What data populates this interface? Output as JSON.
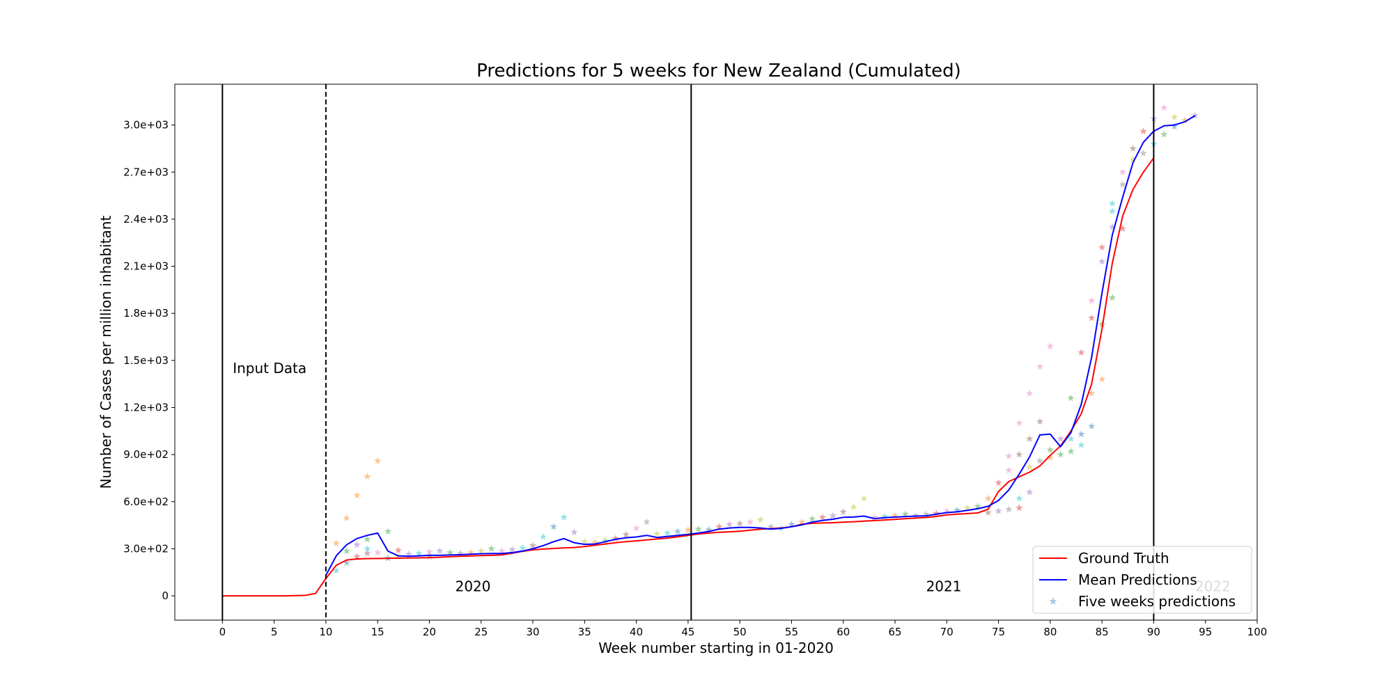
{
  "chart_data": {
    "type": "line",
    "title": "Predictions for 5 weeks for New Zealand (Cumulated)",
    "xlabel": "Week number starting in 01-2020",
    "ylabel": "Number of Cases per million inhabitant",
    "xlim": [
      -4.6,
      100
    ],
    "ylim": [
      -155,
      3260
    ],
    "xticks": [
      0,
      5,
      10,
      15,
      20,
      25,
      30,
      35,
      40,
      45,
      50,
      55,
      60,
      65,
      70,
      75,
      80,
      85,
      90,
      95,
      100
    ],
    "yticks": [
      {
        "value": 0,
        "label": "0"
      },
      {
        "value": 300,
        "label": "3.0e+02"
      },
      {
        "value": 600,
        "label": "6.0e+02"
      },
      {
        "value": 900,
        "label": "9.0e+02"
      },
      {
        "value": 1200,
        "label": "1.2e+03"
      },
      {
        "value": 1500,
        "label": "1.5e+03"
      },
      {
        "value": 1800,
        "label": "1.8e+03"
      },
      {
        "value": 2100,
        "label": "2.1e+03"
      },
      {
        "value": 2400,
        "label": "2.4e+03"
      },
      {
        "value": 2700,
        "label": "2.7e+03"
      },
      {
        "value": 3000,
        "label": "3.0e+03"
      }
    ],
    "grid": false,
    "legend_position": "bottom-right",
    "vertical_lines": [
      {
        "x": 0,
        "style": "solid"
      },
      {
        "x": 10,
        "style": "dashed"
      },
      {
        "x": 45.3,
        "style": "solid"
      },
      {
        "x": 90,
        "style": "solid"
      }
    ],
    "annotations": [
      {
        "text": "Input Data",
        "x": 1,
        "y": 1420
      },
      {
        "text": "2020",
        "x": 22.5,
        "y": 30
      },
      {
        "text": "2021",
        "x": 68,
        "y": 30
      },
      {
        "text": "2022",
        "x": 94,
        "y": 30
      }
    ],
    "series": [
      {
        "name": "Ground Truth",
        "color": "#ff0000",
        "x": [
          0,
          1,
          2,
          3,
          4,
          5,
          6,
          7,
          8,
          9,
          10,
          11,
          12,
          13,
          14,
          15,
          16,
          17,
          18,
          19,
          20,
          21,
          22,
          23,
          24,
          25,
          26,
          27,
          28,
          29,
          30,
          31,
          32,
          33,
          34,
          35,
          36,
          37,
          38,
          39,
          40,
          41,
          42,
          43,
          44,
          45,
          46,
          47,
          48,
          49,
          50,
          51,
          52,
          53,
          54,
          55,
          56,
          57,
          58,
          59,
          60,
          61,
          62,
          63,
          64,
          65,
          66,
          67,
          68,
          69,
          70,
          71,
          72,
          73,
          74,
          75,
          76,
          77,
          78,
          79,
          80,
          81,
          82,
          83,
          84,
          85,
          86,
          87,
          88,
          89,
          90
        ],
        "values": [
          0,
          0,
          0,
          0,
          0,
          0,
          0,
          1,
          3,
          15,
          110,
          195,
          228,
          235,
          237,
          238,
          239,
          240,
          241,
          242,
          243,
          246,
          249,
          252,
          254,
          256,
          258,
          261,
          271,
          283,
          293,
          298,
          302,
          305,
          308,
          314,
          322,
          330,
          338,
          345,
          350,
          356,
          362,
          368,
          376,
          385,
          394,
          400,
          405,
          408,
          412,
          418,
          424,
          428,
          432,
          440,
          456,
          462,
          464,
          466,
          469,
          472,
          476,
          479,
          483,
          487,
          491,
          495,
          499,
          506,
          516,
          520,
          524,
          528,
          552,
          665,
          728,
          758,
          788,
          828,
          895,
          955,
          1050,
          1160,
          1350,
          1700,
          2120,
          2420,
          2590,
          2700,
          2790
        ]
      },
      {
        "name": "Mean Predictions",
        "color": "#0000ff",
        "x": [
          10,
          11,
          12,
          13,
          14,
          15,
          16,
          17,
          18,
          19,
          20,
          21,
          22,
          23,
          24,
          25,
          26,
          27,
          28,
          29,
          30,
          31,
          32,
          33,
          34,
          35,
          36,
          37,
          38,
          39,
          40,
          41,
          42,
          43,
          44,
          45,
          46,
          47,
          48,
          49,
          50,
          51,
          52,
          53,
          54,
          55,
          56,
          57,
          58,
          59,
          60,
          61,
          62,
          63,
          64,
          65,
          66,
          67,
          68,
          69,
          70,
          71,
          72,
          73,
          74,
          75,
          76,
          77,
          78,
          79,
          80,
          81,
          82,
          83,
          84,
          85,
          86,
          87,
          88,
          89,
          90,
          91,
          92,
          93,
          94
        ],
        "values": [
          130,
          255,
          325,
          365,
          385,
          400,
          285,
          255,
          252,
          255,
          258,
          258,
          260,
          262,
          265,
          268,
          270,
          270,
          275,
          285,
          300,
          320,
          345,
          365,
          338,
          328,
          330,
          345,
          360,
          370,
          375,
          385,
          372,
          378,
          385,
          392,
          400,
          410,
          425,
          432,
          436,
          436,
          432,
          425,
          430,
          440,
          452,
          470,
          480,
          488,
          500,
          502,
          508,
          492,
          498,
          502,
          505,
          508,
          510,
          520,
          530,
          535,
          545,
          555,
          570,
          608,
          675,
          775,
          885,
          1025,
          1030,
          950,
          1040,
          1220,
          1520,
          1930,
          2300,
          2540,
          2760,
          2890,
          2960,
          2995,
          3000,
          3020,
          3060
        ]
      },
      {
        "name": "Five weeks predictions",
        "color": "#1f77b4",
        "marker": "star",
        "points": [
          {
            "x": 11,
            "y": 160,
            "c": "#17becf"
          },
          {
            "x": 11,
            "y": 335,
            "c": "#ff7f0e"
          },
          {
            "x": 12,
            "y": 210,
            "c": "#1f77b4"
          },
          {
            "x": 12,
            "y": 495,
            "c": "#ff7f0e"
          },
          {
            "x": 12,
            "y": 285,
            "c": "#2ca02c"
          },
          {
            "x": 13,
            "y": 250,
            "c": "#d62728"
          },
          {
            "x": 13,
            "y": 640,
            "c": "#ff7f0e"
          },
          {
            "x": 13,
            "y": 325,
            "c": "#9467bd"
          },
          {
            "x": 14,
            "y": 270,
            "c": "#8c564b"
          },
          {
            "x": 14,
            "y": 760,
            "c": "#ff7f0e"
          },
          {
            "x": 14,
            "y": 360,
            "c": "#2ca02c"
          },
          {
            "x": 14,
            "y": 300,
            "c": "#17becf"
          },
          {
            "x": 15,
            "y": 860,
            "c": "#ff7f0e"
          },
          {
            "x": 15,
            "y": 275,
            "c": "#e377c2"
          },
          {
            "x": 16,
            "y": 410,
            "c": "#2ca02c"
          },
          {
            "x": 16,
            "y": 240,
            "c": "#1f77b4"
          },
          {
            "x": 17,
            "y": 290,
            "c": "#d62728"
          },
          {
            "x": 17,
            "y": 250,
            "c": "#bcbd22"
          },
          {
            "x": 18,
            "y": 265,
            "c": "#9467bd"
          },
          {
            "x": 19,
            "y": 270,
            "c": "#17becf"
          },
          {
            "x": 20,
            "y": 280,
            "c": "#e377c2"
          },
          {
            "x": 20,
            "y": 250,
            "c": "#8c564b"
          },
          {
            "x": 21,
            "y": 285,
            "c": "#9467bd"
          },
          {
            "x": 22,
            "y": 275,
            "c": "#2ca02c"
          },
          {
            "x": 23,
            "y": 270,
            "c": "#7f7f7f"
          },
          {
            "x": 24,
            "y": 275,
            "c": "#ff7f0e"
          },
          {
            "x": 25,
            "y": 285,
            "c": "#bcbd22"
          },
          {
            "x": 26,
            "y": 300,
            "c": "#2ca02c"
          },
          {
            "x": 27,
            "y": 285,
            "c": "#e377c2"
          },
          {
            "x": 28,
            "y": 295,
            "c": "#9467bd"
          },
          {
            "x": 29,
            "y": 305,
            "c": "#17becf"
          },
          {
            "x": 30,
            "y": 320,
            "c": "#8c564b"
          },
          {
            "x": 31,
            "y": 375,
            "c": "#17becf"
          },
          {
            "x": 32,
            "y": 440,
            "c": "#1f77b4"
          },
          {
            "x": 33,
            "y": 500,
            "c": "#17becf"
          },
          {
            "x": 34,
            "y": 405,
            "c": "#9467bd"
          },
          {
            "x": 35,
            "y": 345,
            "c": "#bcbd22"
          },
          {
            "x": 36,
            "y": 340,
            "c": "#ff7f0e"
          },
          {
            "x": 37,
            "y": 350,
            "c": "#2ca02c"
          },
          {
            "x": 38,
            "y": 365,
            "c": "#d62728"
          },
          {
            "x": 39,
            "y": 390,
            "c": "#8c564b"
          },
          {
            "x": 40,
            "y": 430,
            "c": "#e377c2"
          },
          {
            "x": 41,
            "y": 470,
            "c": "#7f7f7f"
          },
          {
            "x": 42,
            "y": 395,
            "c": "#bcbd22"
          },
          {
            "x": 43,
            "y": 400,
            "c": "#17becf"
          },
          {
            "x": 44,
            "y": 410,
            "c": "#1f77b4"
          },
          {
            "x": 45,
            "y": 420,
            "c": "#ff7f0e"
          },
          {
            "x": 46,
            "y": 425,
            "c": "#2ca02c"
          },
          {
            "x": 47,
            "y": 420,
            "c": "#1f77b4"
          },
          {
            "x": 48,
            "y": 440,
            "c": "#d62728"
          },
          {
            "x": 49,
            "y": 455,
            "c": "#9467bd"
          },
          {
            "x": 50,
            "y": 460,
            "c": "#8c564b"
          },
          {
            "x": 51,
            "y": 470,
            "c": "#e377c2"
          },
          {
            "x": 52,
            "y": 485,
            "c": "#bcbd22"
          },
          {
            "x": 53,
            "y": 440,
            "c": "#7f7f7f"
          },
          {
            "x": 54,
            "y": 430,
            "c": "#17becf"
          },
          {
            "x": 55,
            "y": 455,
            "c": "#1f77b4"
          },
          {
            "x": 56,
            "y": 470,
            "c": "#ff7f0e"
          },
          {
            "x": 57,
            "y": 490,
            "c": "#2ca02c"
          },
          {
            "x": 58,
            "y": 500,
            "c": "#d62728"
          },
          {
            "x": 59,
            "y": 510,
            "c": "#9467bd"
          },
          {
            "x": 60,
            "y": 535,
            "c": "#8c564b"
          },
          {
            "x": 61,
            "y": 565,
            "c": "#bcbd22"
          },
          {
            "x": 62,
            "y": 620,
            "c": "#bcbd22"
          },
          {
            "x": 63,
            "y": 500,
            "c": "#e377c2"
          },
          {
            "x": 64,
            "y": 505,
            "c": "#17becf"
          },
          {
            "x": 65,
            "y": 510,
            "c": "#ff7f0e"
          },
          {
            "x": 66,
            "y": 520,
            "c": "#2ca02c"
          },
          {
            "x": 67,
            "y": 510,
            "c": "#9467bd"
          },
          {
            "x": 68,
            "y": 520,
            "c": "#7f7f7f"
          },
          {
            "x": 69,
            "y": 525,
            "c": "#d62728"
          },
          {
            "x": 70,
            "y": 540,
            "c": "#e377c2"
          },
          {
            "x": 71,
            "y": 545,
            "c": "#1f77b4"
          },
          {
            "x": 72,
            "y": 560,
            "c": "#bcbd22"
          },
          {
            "x": 73,
            "y": 570,
            "c": "#2ca02c"
          },
          {
            "x": 74,
            "y": 530,
            "c": "#8c564b"
          },
          {
            "x": 74,
            "y": 620,
            "c": "#ff7f0e"
          },
          {
            "x": 75,
            "y": 540,
            "c": "#9467bd"
          },
          {
            "x": 75,
            "y": 720,
            "c": "#d62728"
          },
          {
            "x": 76,
            "y": 550,
            "c": "#7f7f7f"
          },
          {
            "x": 76,
            "y": 800,
            "c": "#e377c2"
          },
          {
            "x": 76,
            "y": 890,
            "c": "#e377c2"
          },
          {
            "x": 77,
            "y": 560,
            "c": "#d62728"
          },
          {
            "x": 77,
            "y": 900,
            "c": "#8c564b"
          },
          {
            "x": 77,
            "y": 1100,
            "c": "#e377c2"
          },
          {
            "x": 77,
            "y": 620,
            "c": "#17becf"
          },
          {
            "x": 78,
            "y": 660,
            "c": "#9467bd"
          },
          {
            "x": 78,
            "y": 1000,
            "c": "#8c564b"
          },
          {
            "x": 78,
            "y": 1290,
            "c": "#e377c2"
          },
          {
            "x": 78,
            "y": 820,
            "c": "#bcbd22"
          },
          {
            "x": 79,
            "y": 860,
            "c": "#7f7f7f"
          },
          {
            "x": 79,
            "y": 1110,
            "c": "#8c564b"
          },
          {
            "x": 79,
            "y": 1460,
            "c": "#e377c2"
          },
          {
            "x": 80,
            "y": 880,
            "c": "#ff7f0e"
          },
          {
            "x": 80,
            "y": 1590,
            "c": "#e377c2"
          },
          {
            "x": 80,
            "y": 930,
            "c": "#2ca02c"
          },
          {
            "x": 81,
            "y": 900,
            "c": "#2ca02c"
          },
          {
            "x": 81,
            "y": 1000,
            "c": "#9467bd"
          },
          {
            "x": 82,
            "y": 920,
            "c": "#2ca02c"
          },
          {
            "x": 82,
            "y": 1260,
            "c": "#2ca02c"
          },
          {
            "x": 82,
            "y": 1000,
            "c": "#17becf"
          },
          {
            "x": 83,
            "y": 960,
            "c": "#17becf"
          },
          {
            "x": 83,
            "y": 1030,
            "c": "#1f77b4"
          },
          {
            "x": 83,
            "y": 1550,
            "c": "#d62728"
          },
          {
            "x": 84,
            "y": 1080,
            "c": "#1f77b4"
          },
          {
            "x": 84,
            "y": 1290,
            "c": "#ff7f0e"
          },
          {
            "x": 84,
            "y": 1770,
            "c": "#d62728"
          },
          {
            "x": 84,
            "y": 1880,
            "c": "#e377c2"
          },
          {
            "x": 85,
            "y": 1380,
            "c": "#ff7f0e"
          },
          {
            "x": 85,
            "y": 1730,
            "c": "#2ca02c"
          },
          {
            "x": 85,
            "y": 2130,
            "c": "#9467bd"
          },
          {
            "x": 85,
            "y": 2220,
            "c": "#d62728"
          },
          {
            "x": 86,
            "y": 1900,
            "c": "#2ca02c"
          },
          {
            "x": 86,
            "y": 2350,
            "c": "#9467bd"
          },
          {
            "x": 86,
            "y": 2450,
            "c": "#17becf"
          },
          {
            "x": 86,
            "y": 2500,
            "c": "#17becf"
          },
          {
            "x": 87,
            "y": 2340,
            "c": "#d62728"
          },
          {
            "x": 87,
            "y": 2620,
            "c": "#7f7f7f"
          },
          {
            "x": 87,
            "y": 2700,
            "c": "#e377c2"
          },
          {
            "x": 88,
            "y": 2850,
            "c": "#8c564b"
          },
          {
            "x": 88,
            "y": 2780,
            "c": "#bcbd22"
          },
          {
            "x": 89,
            "y": 2820,
            "c": "#7f7f7f"
          },
          {
            "x": 89,
            "y": 2960,
            "c": "#d62728"
          },
          {
            "x": 90,
            "y": 2880,
            "c": "#17becf"
          },
          {
            "x": 90,
            "y": 3040,
            "c": "#9467bd"
          },
          {
            "x": 91,
            "y": 2940,
            "c": "#2ca02c"
          },
          {
            "x": 91,
            "y": 3110,
            "c": "#e377c2"
          },
          {
            "x": 92,
            "y": 2990,
            "c": "#1f77b4"
          },
          {
            "x": 92,
            "y": 3050,
            "c": "#bcbd22"
          },
          {
            "x": 93,
            "y": 3030,
            "c": "#ff7f0e"
          },
          {
            "x": 94,
            "y": 3060,
            "c": "#9467bd"
          }
        ]
      }
    ]
  }
}
